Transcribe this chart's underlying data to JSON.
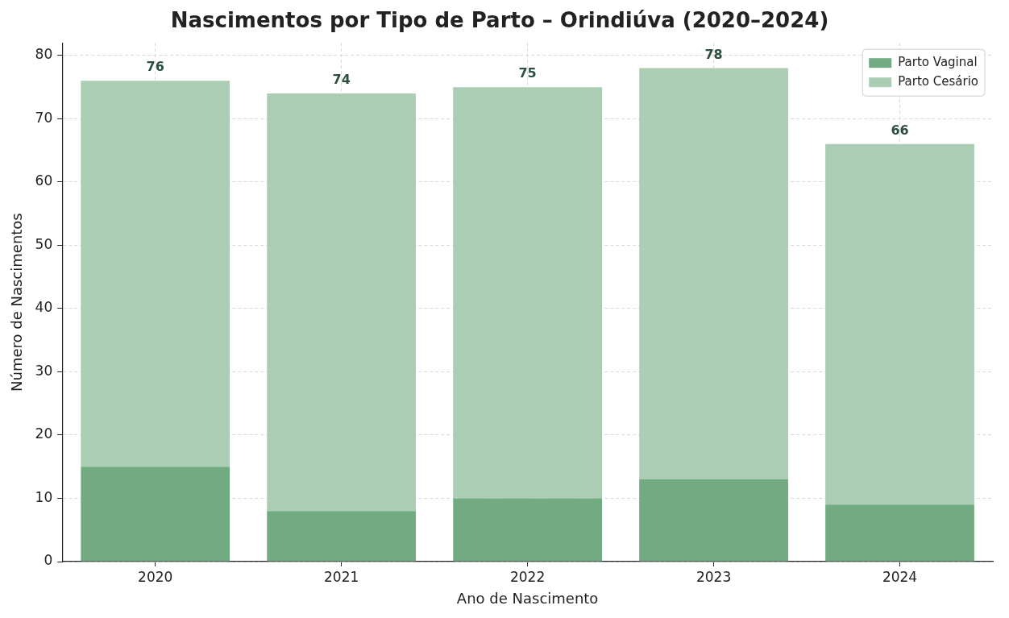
{
  "chart_data": {
    "type": "bar",
    "title": "Nascimentos por Tipo de Parto – Orindiúva (2020–2024)",
    "xlabel": "Ano de Nascimento",
    "ylabel": "Número de Nascimentos",
    "categories": [
      "2020",
      "2021",
      "2022",
      "2023",
      "2024"
    ],
    "stacked": true,
    "series": [
      {
        "name": "Parto Vaginal",
        "color": "#72ab82",
        "values": [
          15,
          8,
          10,
          13,
          9
        ]
      },
      {
        "name": "Parto Cesário",
        "color": "#abcdb3",
        "values": [
          61,
          66,
          65,
          65,
          57
        ]
      }
    ],
    "totals": [
      "76",
      "74",
      "75",
      "78",
      "66"
    ],
    "ylim": [
      0,
      82
    ],
    "yticks": [
      0,
      10,
      20,
      30,
      40,
      50,
      60,
      70,
      80
    ],
    "grid": true,
    "legend": "top right"
  }
}
